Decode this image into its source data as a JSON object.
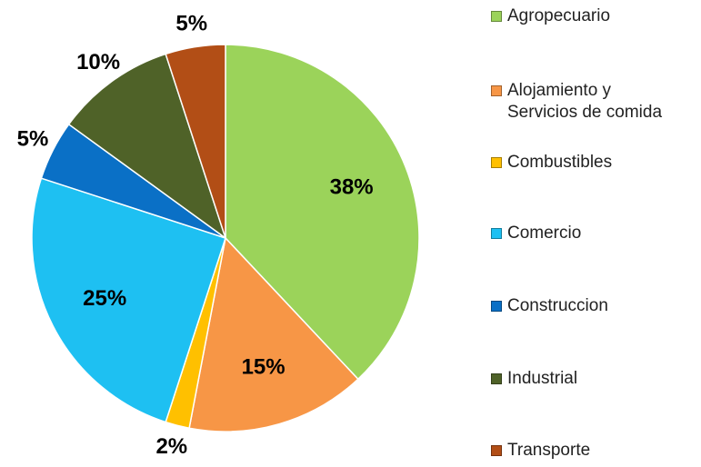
{
  "chart_data": {
    "type": "pie",
    "categories": [
      "Agropecuario",
      "Alojamiento y Servicios de comida",
      "Combustibles",
      "Comercio",
      "Construccion",
      "Industrial",
      "Transporte"
    ],
    "values": [
      38,
      15,
      2,
      25,
      5,
      10,
      5
    ],
    "value_labels": [
      "38%",
      "15%",
      "2%",
      "25%",
      "5%",
      "10%",
      "5%"
    ],
    "colors": [
      "#9bd35a",
      "#f79646",
      "#ffc000",
      "#1ec0f2",
      "#0a70c6",
      "#4f6228",
      "#b24e16"
    ],
    "legend": "right"
  }
}
